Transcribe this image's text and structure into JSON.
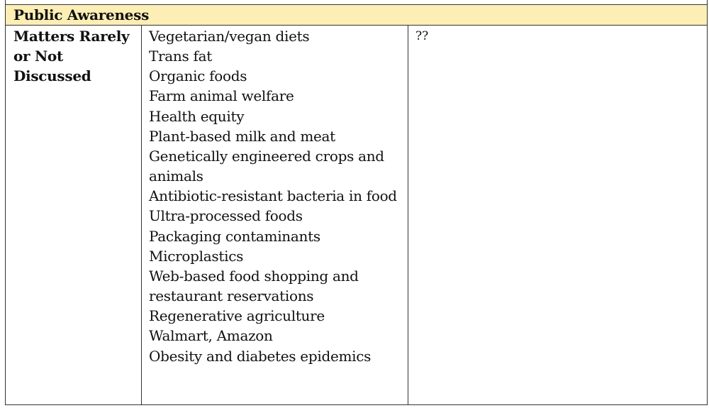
{
  "table": {
    "header": "Public Awareness",
    "row_label": "Matters Rarely or Not Discussed",
    "items": [
      "Vegetarian/vegan diets",
      "Trans fat",
      "Organic foods",
      "Farm animal welfare",
      "Health equity",
      "Plant-based milk and meat",
      "Genetically engineered crops and animals",
      "Antibiotic-resistant bacteria in food",
      "Ultra-processed foods",
      "Packaging contaminants",
      "Microplastics",
      "Web-based food shopping and restaurant reservations",
      "Regenerative agriculture",
      "Walmart, Amazon",
      "Obesity and diabetes epidemics"
    ],
    "third_column_text": "??"
  }
}
